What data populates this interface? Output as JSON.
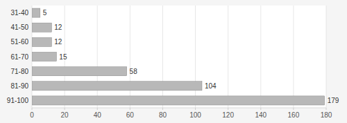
{
  "chart_data": {
    "type": "bar",
    "orientation": "horizontal",
    "categories": [
      "31-40",
      "41-50",
      "51-60",
      "61-70",
      "71-80",
      "81-90",
      "91-100"
    ],
    "values": [
      5,
      12,
      12,
      15,
      58,
      104,
      179
    ],
    "color": "#b8b8b8",
    "xlim": [
      0,
      180
    ],
    "xticks": [
      0,
      20,
      40,
      60,
      80,
      100,
      120,
      140,
      160,
      180
    ],
    "grid": true,
    "data_labels": true
  }
}
